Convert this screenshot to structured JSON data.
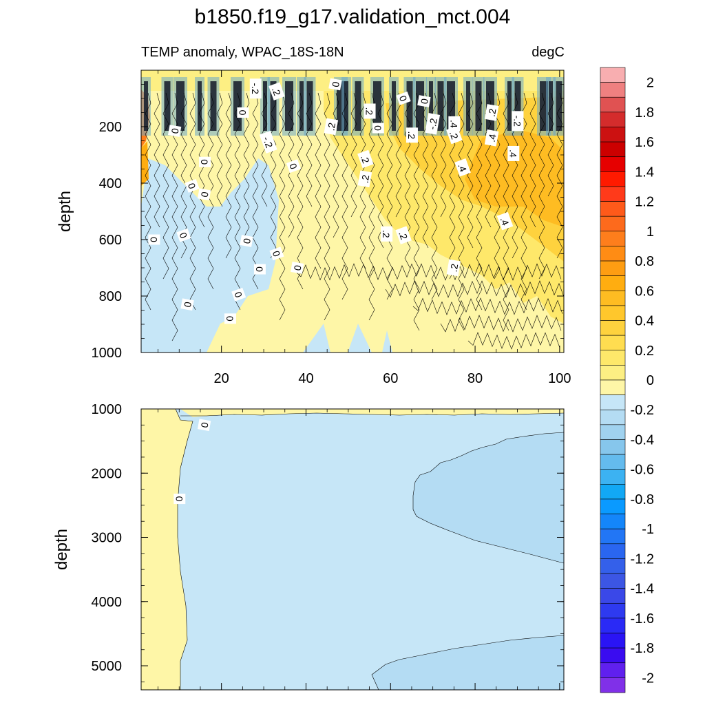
{
  "chart_data": {
    "type": "contour",
    "title": "b1850.f19_g17.validation_mct.004",
    "units": "degC",
    "colorbar": {
      "levels": [
        "2",
        "1.8",
        "1.6",
        "1.4",
        "1.2",
        "1",
        "0.8",
        "0.6",
        "0.4",
        "0.2",
        "0",
        "-0.2",
        "-0.4",
        "-0.6",
        "-0.8",
        "-1",
        "-1.2",
        "-1.4",
        "-1.6",
        "-1.8",
        "-2"
      ],
      "colors": [
        "#f8aeb0",
        "#ef8080",
        "#e05252",
        "#d42c2c",
        "#cc1111",
        "#cc0000",
        "#e60000",
        "#ff1a00",
        "#ff3a1a",
        "#ff5a1a",
        "#fd6a1c",
        "#fe7e1c",
        "#ff8c14",
        "#fe9d12",
        "#ffad10",
        "#febc22",
        "#ffc72c",
        "#fed23e",
        "#ffdd50",
        "#fee86a",
        "#fdef83",
        "#fef6a7",
        "#c6e6f7",
        "#b4dcf3",
        "#a0d2ef",
        "#86c6ec",
        "#64bbee",
        "#3cb2f2",
        "#12a8f5",
        "#0a9aff",
        "#1486fa",
        "#2276f5",
        "#2a66f0",
        "#3460ea",
        "#3c56e4",
        "#3a48e8",
        "#2e3af0",
        "#2a2af6",
        "#2a14f5",
        "#3a0cf0",
        "#6020ee",
        "#8030e8"
      ]
    },
    "panels": [
      {
        "id": "upper",
        "subtitle_left": "TEMP anomaly, WPAC_18S-18N",
        "subtitle_right": "degC",
        "ylabel": "depth",
        "ylim": [
          0,
          1000
        ],
        "xlim": [
          1,
          101
        ],
        "y_ticks": [
          "200",
          "400",
          "600",
          "800",
          "1000"
        ],
        "x_ticks": [
          "20",
          "40",
          "60",
          "80",
          "100"
        ],
        "contour_labels": [
          {
            "text": "0",
            "x": 9,
            "y": 215
          },
          {
            "text": "0",
            "x": 16,
            "y": 325
          },
          {
            "text": "0",
            "x": 13,
            "y": 410
          },
          {
            "text": "0",
            "x": 16,
            "y": 440
          },
          {
            "text": "0",
            "x": 4,
            "y": 600
          },
          {
            "text": "0",
            "x": 11,
            "y": 585
          },
          {
            "text": "0",
            "x": 12,
            "y": 830
          },
          {
            "text": "0",
            "x": 22,
            "y": 880
          },
          {
            "text": "0",
            "x": 24,
            "y": 795
          },
          {
            "text": "0",
            "x": 26,
            "y": 605
          },
          {
            "text": "0",
            "x": 29,
            "y": 705
          },
          {
            "text": "0",
            "x": 33,
            "y": 650
          },
          {
            "text": "0",
            "x": 38,
            "y": 700
          },
          {
            "text": "0",
            "x": 25,
            "y": 150
          },
          {
            "text": "0",
            "x": 37,
            "y": 340
          },
          {
            "text": "0",
            "x": 47,
            "y": 50
          },
          {
            "text": "0",
            "x": 57,
            "y": 205
          },
          {
            "text": "0",
            "x": 63,
            "y": 100
          },
          {
            "text": "0",
            "x": 68,
            "y": 110
          },
          {
            "text": "-.2",
            "x": 28,
            "y": 65
          },
          {
            "text": "-.2",
            "x": 31,
            "y": 255
          },
          {
            "text": "-.2",
            "x": 70,
            "y": 190
          },
          {
            "text": "-.2",
            "x": 90,
            "y": 180
          },
          {
            "text": ".2",
            "x": 33,
            "y": 75
          },
          {
            "text": ".2",
            "x": 46,
            "y": 200
          },
          {
            "text": ".2",
            "x": 55,
            "y": 145
          },
          {
            "text": ".2",
            "x": 54,
            "y": 315
          },
          {
            "text": ".2",
            "x": 54,
            "y": 385
          },
          {
            "text": ".2",
            "x": 59,
            "y": 580
          },
          {
            "text": ".2",
            "x": 63,
            "y": 585
          },
          {
            "text": ".2",
            "x": 75,
            "y": 700
          },
          {
            "text": ".2",
            "x": 65,
            "y": 230
          },
          {
            "text": ".2",
            "x": 75,
            "y": 230
          },
          {
            "text": ".2",
            "x": 84,
            "y": 150
          },
          {
            "text": ".4",
            "x": 75,
            "y": 190
          },
          {
            "text": ".4",
            "x": 77,
            "y": 345
          },
          {
            "text": ".4",
            "x": 84,
            "y": 240
          },
          {
            "text": ".4",
            "x": 89,
            "y": 295
          },
          {
            "text": ".4",
            "x": 87,
            "y": 535
          }
        ]
      },
      {
        "id": "lower",
        "ylabel": "depth",
        "ylim": [
          1000,
          5375
        ],
        "xlim": [
          1,
          101
        ],
        "y_ticks": [
          "1000",
          "2000",
          "3000",
          "4000",
          "5000"
        ],
        "contour_labels": [
          {
            "text": "0",
            "x": 16,
            "y": 1250
          },
          {
            "text": "0",
            "x": 10,
            "y": 2400
          }
        ]
      }
    ]
  }
}
